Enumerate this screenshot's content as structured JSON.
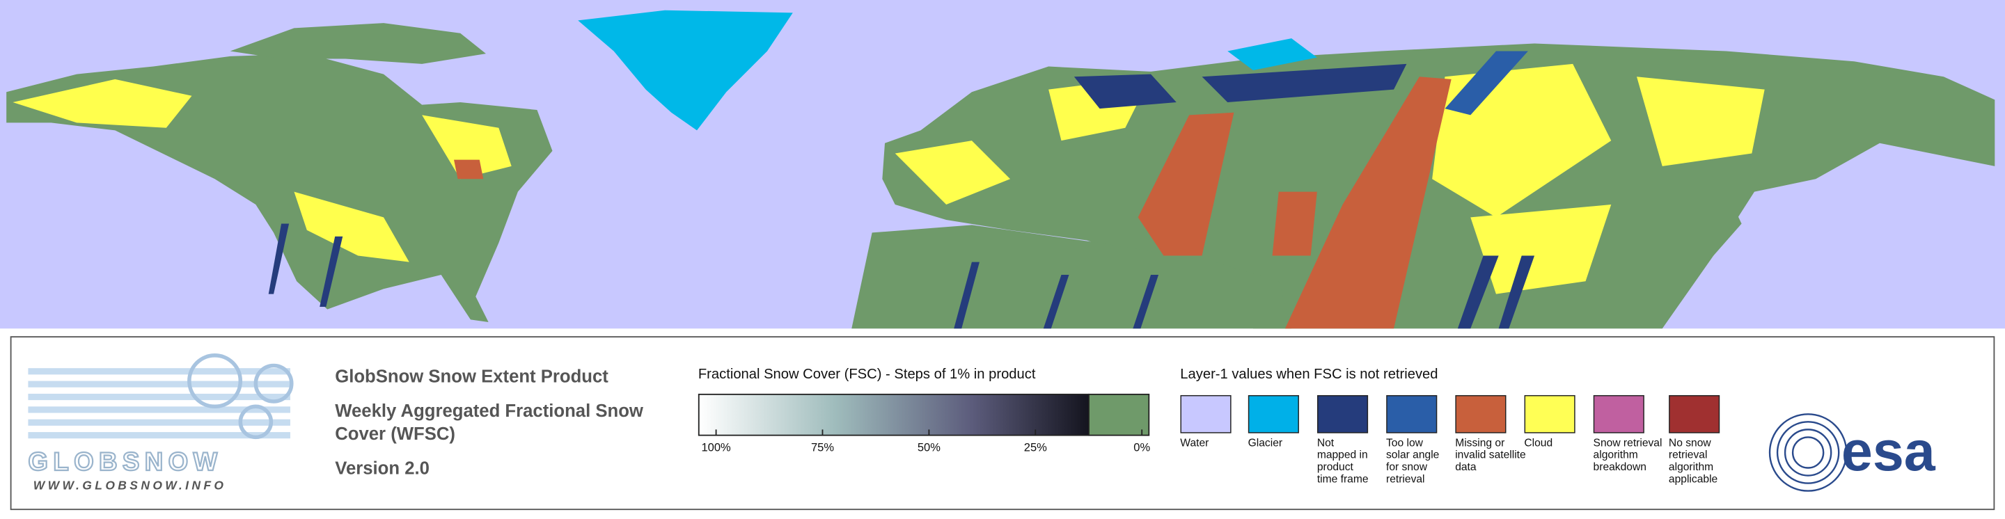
{
  "legend_panel": {
    "logo": {
      "name": "GLOBSNOW",
      "url": "WWW.GLOBSNOW.INFO"
    },
    "product": {
      "title": "GlobSnow Snow Extent Product",
      "subtitle_lines": [
        "Weekly Aggregated Fractional Snow",
        "Cover (WFSC)"
      ],
      "version": "Version 2.0"
    },
    "colorbar": {
      "title": "Fractional Snow Cover (FSC) - Steps of 1% in product",
      "ticks": [
        {
          "value": 100,
          "label": "100%"
        },
        {
          "value": 75,
          "label": "75%"
        },
        {
          "value": 50,
          "label": "50%"
        },
        {
          "value": 25,
          "label": "25%"
        },
        {
          "value": 0,
          "label": "0%"
        }
      ]
    },
    "layer1": {
      "title": "Layer-1 values when FSC is not retrieved",
      "items": [
        {
          "color": "#c8c8ff",
          "label_lines": [
            "Water"
          ]
        },
        {
          "color": "#00b0e8",
          "label_lines": [
            "Glacier"
          ]
        },
        {
          "color": "#253c7c",
          "label_lines": [
            "Not",
            "mapped in",
            "product",
            "time frame"
          ]
        },
        {
          "color": "#2a5ea8",
          "label_lines": [
            "Too low",
            "solar angle",
            "for snow",
            "retrieval"
          ]
        },
        {
          "color": "#c8603c",
          "label_lines": [
            "Missing or",
            "invalid satellite",
            "data"
          ]
        },
        {
          "color": "#ffff55",
          "label_lines": [
            "Cloud"
          ]
        },
        {
          "color": "#c060a0",
          "label_lines": [
            "Snow retrieval",
            "algorithm",
            "breakdown"
          ]
        },
        {
          "color": "#a03030",
          "label_lines": [
            "No snow",
            "retrieval",
            "algorithm",
            "applicable"
          ]
        }
      ]
    },
    "agency": "esa"
  }
}
